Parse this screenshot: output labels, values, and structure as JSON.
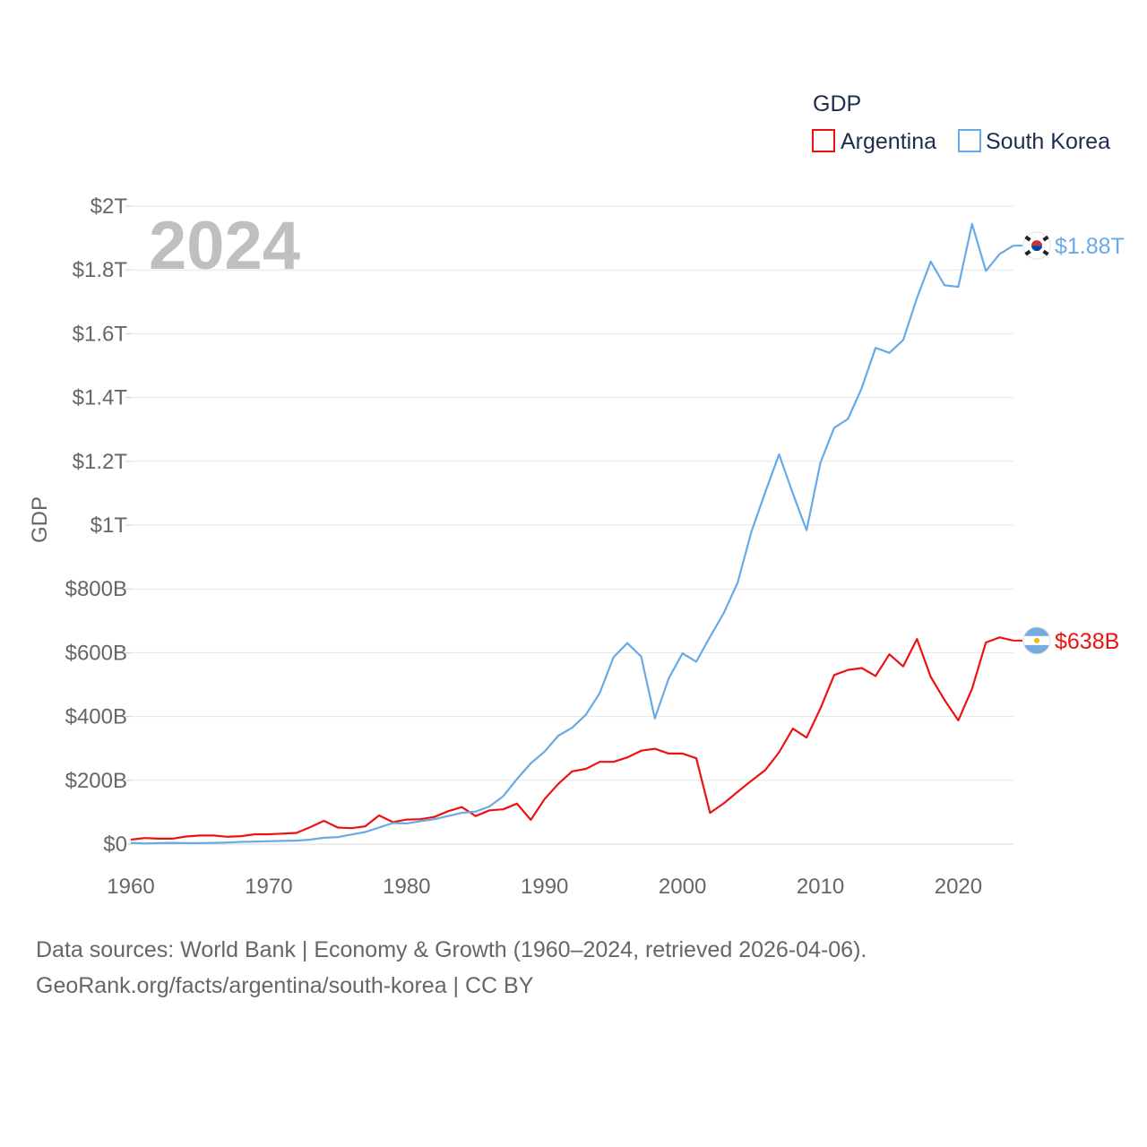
{
  "chart_data": {
    "type": "line",
    "title": "GDP",
    "ylabel": "GDP",
    "xlabel": "",
    "current_year_label": "2024",
    "legend": {
      "title": "GDP",
      "placement": "top-right"
    },
    "x": [
      1960,
      1961,
      1962,
      1963,
      1964,
      1965,
      1966,
      1967,
      1968,
      1969,
      1970,
      1971,
      1972,
      1973,
      1974,
      1975,
      1976,
      1977,
      1978,
      1979,
      1980,
      1981,
      1982,
      1983,
      1984,
      1985,
      1986,
      1987,
      1988,
      1989,
      1990,
      1991,
      1992,
      1993,
      1994,
      1995,
      1996,
      1997,
      1998,
      1999,
      2000,
      2001,
      2002,
      2003,
      2004,
      2005,
      2006,
      2007,
      2008,
      2009,
      2010,
      2011,
      2012,
      2013,
      2014,
      2015,
      2016,
      2017,
      2018,
      2019,
      2020,
      2021,
      2022,
      2023,
      2024
    ],
    "xlim": [
      1960,
      2024
    ],
    "ylim": [
      0,
      2000
    ],
    "y_unit": "billions USD",
    "y_ticks": [
      {
        "value": 0,
        "label": "$0"
      },
      {
        "value": 200,
        "label": "$200B"
      },
      {
        "value": 400,
        "label": "$400B"
      },
      {
        "value": 600,
        "label": "$600B"
      },
      {
        "value": 800,
        "label": "$800B"
      },
      {
        "value": 1000,
        "label": "$1T"
      },
      {
        "value": 1200,
        "label": "$1.2T"
      },
      {
        "value": 1400,
        "label": "$1.4T"
      },
      {
        "value": 1600,
        "label": "$1.6T"
      },
      {
        "value": 1800,
        "label": "$1.8T"
      },
      {
        "value": 2000,
        "label": "$2T"
      }
    ],
    "x_ticks": [
      {
        "value": 1960,
        "label": "1960"
      },
      {
        "value": 1970,
        "label": "1970"
      },
      {
        "value": 1980,
        "label": "1980"
      },
      {
        "value": 1990,
        "label": "1990"
      },
      {
        "value": 2000,
        "label": "2000"
      },
      {
        "value": 2010,
        "label": "2010"
      },
      {
        "value": 2020,
        "label": "2020"
      }
    ],
    "grid": true,
    "series": [
      {
        "name": "Argentina",
        "color": "#ee1111",
        "end_label": "$638B",
        "flag": "argentina-flag",
        "values": [
          14,
          19,
          17,
          17,
          24,
          27,
          27,
          23,
          25,
          31,
          31,
          33,
          35,
          53,
          73,
          52,
          50,
          56,
          90,
          69,
          77,
          78,
          85,
          103,
          116,
          88,
          106,
          109,
          127,
          76,
          141,
          189,
          228,
          236,
          258,
          258,
          272,
          293,
          299,
          284,
          284,
          269,
          98,
          128,
          164,
          199,
          232,
          288,
          362,
          334,
          425,
          530,
          546,
          552,
          527,
          595,
          557,
          643,
          524,
          452,
          388,
          487,
          632,
          648,
          638
        ]
      },
      {
        "name": "South Korea",
        "color": "#66aae8",
        "end_label": "$1.88T",
        "flag": "south-korea-flag",
        "values": [
          4,
          2,
          3,
          4,
          3,
          3,
          4,
          5,
          7,
          8,
          9,
          10,
          11,
          14,
          20,
          22,
          30,
          38,
          52,
          66,
          65,
          72,
          78,
          88,
          98,
          102,
          118,
          150,
          204,
          253,
          290,
          340,
          365,
          406,
          474,
          586,
          630,
          588,
          394,
          519,
          598,
          572,
          650,
          725,
          820,
          980,
          1103,
          1222,
          1099,
          984,
          1195,
          1305,
          1333,
          1430,
          1556,
          1540,
          1580,
          1712,
          1826,
          1752,
          1747,
          1944,
          1797,
          1850,
          1876
        ]
      }
    ]
  },
  "footer": {
    "line1": "Data sources: World Bank | Economy & Growth (1960–2024, retrieved 2026-04-06).",
    "line2": "GeoRank.org/facts/argentina/south-korea | CC BY"
  }
}
